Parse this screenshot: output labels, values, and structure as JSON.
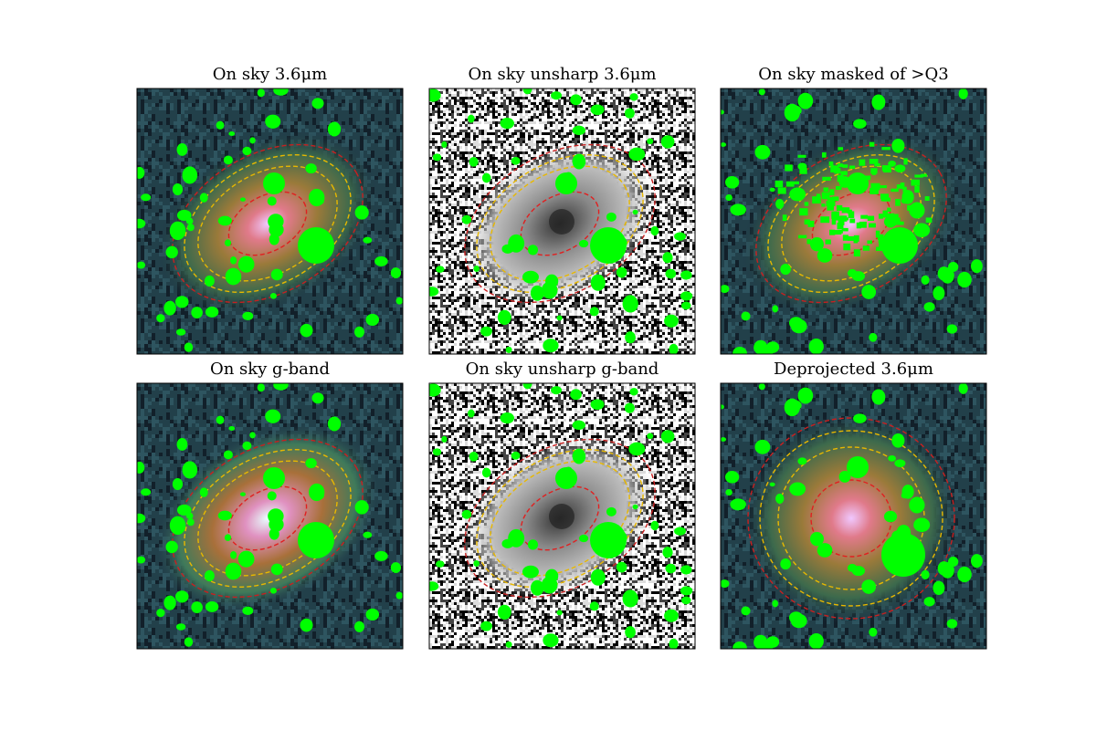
{
  "panels": [
    {
      "title": "On sky 3.6μm"
    },
    {
      "title": "On sky unsharp 3.6μm"
    },
    {
      "title": "On sky masked of >Q3"
    },
    {
      "title": "On sky g-band"
    },
    {
      "title": "On sky unsharp g-band"
    },
    {
      "title": "Deprojected 3.6μm"
    }
  ]
}
